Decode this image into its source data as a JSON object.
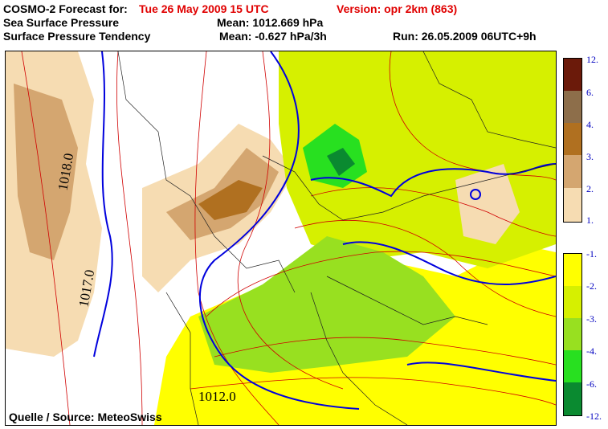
{
  "header": {
    "forecast_prefix": "COSMO-2 Forecast for:",
    "forecast_date": "Tue 26 May 2009 15 UTC",
    "version": "Version: opr 2km (863)",
    "field1": "Sea Surface Pressure",
    "mean1": "Mean: 1012.669 hPa",
    "field2": "Surface Pressure Tendency",
    "mean2": "Mean: -0.627 hPa/3h",
    "run": "Run: 26.05.2009 06UTC+9h"
  },
  "map": {
    "isobar_labels": [
      "1018.0",
      "1017.0",
      "1012.0"
    ],
    "source": "Quelle / Source: MeteoSwiss"
  },
  "legend": {
    "positive": [
      {
        "label": "12.",
        "color": "#6b1a0a"
      },
      {
        "label": "6.",
        "color": "#8d6e4a"
      },
      {
        "label": "4.",
        "color": "#b07020"
      },
      {
        "label": "3.",
        "color": "#d4a670"
      },
      {
        "label": "2.",
        "color": "#f6dcb2"
      }
    ],
    "positive_bottom": "1.",
    "negative": [
      {
        "label": "-1.",
        "color": "#ffff00"
      },
      {
        "label": "-2.",
        "color": "#d6f000"
      },
      {
        "label": "-3.",
        "color": "#98e020"
      },
      {
        "label": "-4.",
        "color": "#28e020"
      },
      {
        "label": "-6.",
        "color": "#0a8a30"
      }
    ],
    "negative_bottom": "-12."
  },
  "colors": {
    "isobar_red": "#d00000",
    "zero_line_blue": "#0000dd",
    "label_blue": "#0000c0"
  }
}
